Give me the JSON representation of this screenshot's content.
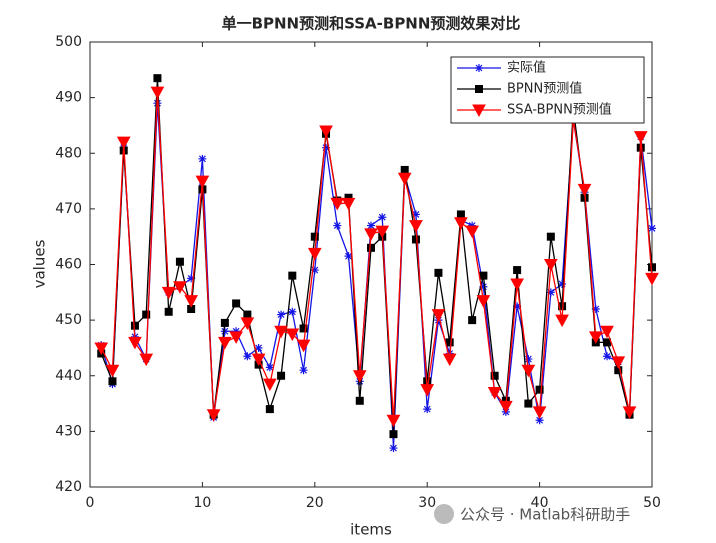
{
  "chart_data": {
    "type": "line",
    "title": "单一BPNN预测和SSA-BPNN预测效果对比",
    "x_label": "items",
    "y_label": "values",
    "x": [
      1,
      2,
      3,
      4,
      5,
      6,
      7,
      8,
      9,
      10,
      11,
      12,
      13,
      14,
      15,
      16,
      17,
      18,
      19,
      20,
      21,
      22,
      23,
      24,
      25,
      26,
      27,
      28,
      29,
      30,
      31,
      32,
      33,
      34,
      35,
      36,
      37,
      38,
      39,
      40,
      41,
      42,
      43,
      44,
      45,
      46,
      47,
      48,
      49,
      50
    ],
    "series": [
      {
        "name": "实际值",
        "color": "#1414e6",
        "marker": "asterisk",
        "values": [
          445.5,
          438.5,
          481,
          447,
          443,
          489,
          455,
          456,
          457.5,
          479,
          432.5,
          448,
          448,
          443.5,
          445,
          441.5,
          451,
          451.5,
          441,
          459,
          481,
          467,
          461.5,
          439,
          467,
          468.5,
          427,
          476,
          469,
          434,
          450,
          444,
          468,
          467,
          456,
          437,
          433.5,
          452.5,
          443,
          432,
          455,
          456.5,
          486,
          473,
          452,
          443.5,
          442.5,
          433,
          483,
          466.5
        ]
      },
      {
        "name": "BPNN预测值",
        "color": "#000000",
        "marker": "square",
        "values": [
          444,
          439,
          480.5,
          449,
          451,
          493.5,
          451.5,
          460.5,
          452,
          473.5,
          433,
          449.5,
          453,
          451,
          442,
          434,
          440,
          458,
          448.5,
          465,
          483.5,
          471.5,
          472,
          435.5,
          463,
          465,
          429.5,
          477,
          464.5,
          439,
          458.5,
          446,
          469,
          450,
          458,
          440,
          435.5,
          459,
          435,
          437.5,
          465,
          452.5,
          488,
          472,
          446,
          446,
          441,
          433,
          481,
          459.5
        ]
      },
      {
        "name": "SSA-BPNN预测值",
        "color": "#ff0000",
        "marker": "triangle-down",
        "values": [
          445,
          441,
          482,
          446,
          443,
          491,
          455,
          456,
          453.5,
          475,
          433,
          446,
          447,
          449.5,
          443,
          438.5,
          448,
          447.5,
          445.5,
          462,
          484,
          471,
          471,
          440,
          465.5,
          466,
          432,
          475.5,
          467,
          437.5,
          451,
          443,
          467.5,
          466,
          453.5,
          437,
          434.5,
          456.5,
          441,
          433.5,
          460,
          450,
          486,
          473.5,
          447,
          448,
          442.5,
          433.5,
          483,
          457.5
        ]
      }
    ],
    "xlim": [
      0,
      50
    ],
    "xticks": [
      0,
      10,
      20,
      30,
      40,
      50
    ],
    "ylim": [
      420,
      500
    ],
    "yticks": [
      420,
      430,
      440,
      450,
      460,
      470,
      480,
      490,
      500
    ],
    "legend": "top-right",
    "watermark": "公众号 · Matlab科研助手"
  }
}
